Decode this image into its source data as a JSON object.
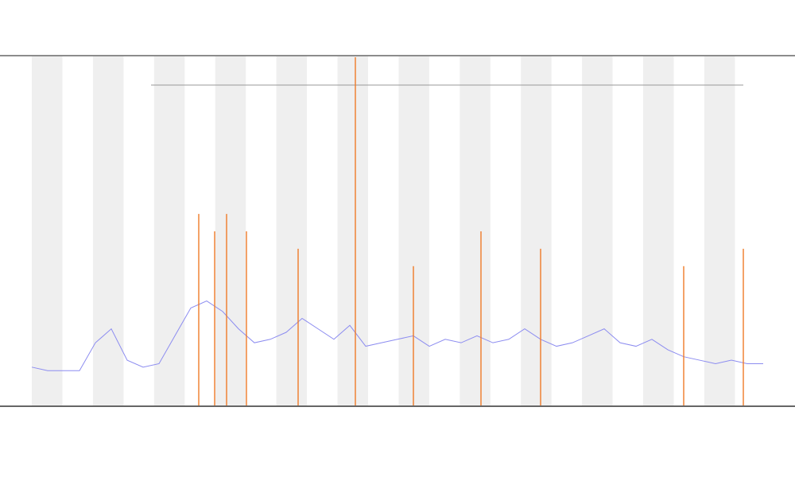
{
  "chart_data": [
    {
      "type": "line",
      "xlim": [
        0,
        92
      ],
      "ylim": [
        0,
        100
      ],
      "x": [
        0,
        2,
        4,
        6,
        8,
        10,
        12,
        14,
        16,
        18,
        20,
        22,
        24,
        26,
        28,
        30,
        32,
        34,
        36,
        38,
        40,
        42,
        44,
        46,
        48,
        50,
        52,
        54,
        56,
        58,
        60,
        62,
        64,
        66,
        68,
        70,
        72,
        74,
        76,
        78,
        80,
        82,
        84,
        86,
        88,
        90,
        92
      ],
      "series": [
        {
          "color": "#8c8cf0",
          "values": [
            11,
            10,
            10,
            10,
            18,
            22,
            13,
            11,
            12,
            20,
            28,
            30,
            27,
            22,
            18,
            19,
            21,
            25,
            22,
            19,
            23,
            17,
            18,
            19,
            20,
            17,
            19,
            18,
            20,
            18,
            19,
            22,
            19,
            17,
            18,
            20,
            22,
            18,
            17,
            19,
            16,
            14,
            13,
            12,
            13,
            12,
            12
          ]
        }
      ]
    },
    {
      "type": "bar",
      "xlim": [
        0,
        92
      ],
      "ylim": [
        0,
        100
      ],
      "color": "#f07a28",
      "x": [
        21,
        23,
        24.5,
        27,
        33.5,
        40.7,
        48,
        56.5,
        64,
        82,
        89.5
      ],
      "values": [
        55,
        50,
        55,
        50,
        45,
        100,
        40,
        50,
        45,
        40,
        45
      ]
    }
  ]
}
